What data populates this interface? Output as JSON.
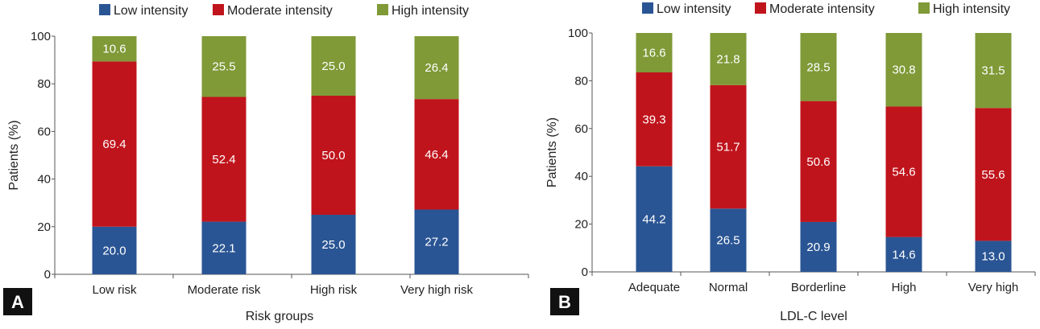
{
  "colors": {
    "low": "#2a5594",
    "moderate": "#c0141c",
    "high": "#7f9a37"
  },
  "chart_data": [
    {
      "panel": "A",
      "type": "bar",
      "stacked": true,
      "categories": [
        "Low risk",
        "Moderate risk",
        "High risk",
        "Very high risk"
      ],
      "series": [
        {
          "name": "Low intensity",
          "key": "low",
          "values": [
            20.0,
            22.1,
            25.0,
            27.2
          ]
        },
        {
          "name": "Moderate intensity",
          "key": "moderate",
          "values": [
            69.4,
            52.4,
            50.0,
            46.4
          ]
        },
        {
          "name": "High intensity",
          "key": "high",
          "values": [
            10.6,
            25.5,
            25.0,
            26.4
          ]
        }
      ],
      "xlabel": "Risk groups",
      "ylabel": "Patients (%)",
      "ylim": [
        0,
        100
      ],
      "yticks": [
        0,
        20,
        40,
        60,
        80,
        100
      ],
      "legend_position": "top"
    },
    {
      "panel": "B",
      "type": "bar",
      "stacked": true,
      "categories": [
        "Adequate",
        "Normal",
        "Borderline",
        "High",
        "Very high"
      ],
      "series": [
        {
          "name": "Low intensity",
          "key": "low",
          "values": [
            44.2,
            26.5,
            20.9,
            14.6,
            13.0
          ]
        },
        {
          "name": "Moderate intensity",
          "key": "moderate",
          "values": [
            39.3,
            51.7,
            50.6,
            54.6,
            55.6
          ]
        },
        {
          "name": "High intensity",
          "key": "high",
          "values": [
            16.6,
            21.8,
            28.5,
            30.8,
            31.5
          ]
        }
      ],
      "xlabel": "LDL-C level",
      "ylabel": "Patients (%)",
      "ylim": [
        0,
        100
      ],
      "yticks": [
        0,
        20,
        40,
        60,
        80,
        100
      ],
      "legend_position": "top"
    }
  ]
}
